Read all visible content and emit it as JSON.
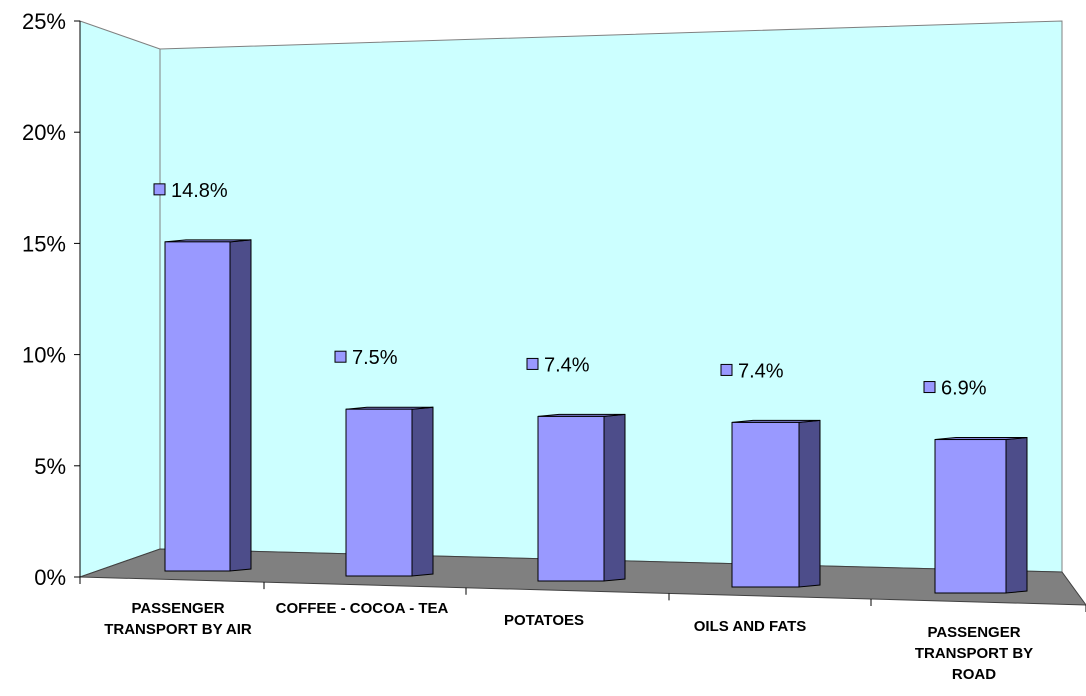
{
  "chart_data": {
    "type": "bar",
    "categories": [
      "PASSENGER TRANSPORT BY AIR",
      "COFFEE - COCOA - TEA",
      "POTATOES",
      "OILS AND FATS",
      "PASSENGER TRANSPORT BY ROAD"
    ],
    "values": [
      14.8,
      7.5,
      7.4,
      7.4,
      6.9
    ],
    "data_labels": [
      "14.8%",
      "7.5%",
      "7.4%",
      "7.4%",
      "6.9%"
    ],
    "ylim": [
      0,
      25
    ],
    "yticks": [
      0,
      5,
      10,
      15,
      20,
      25
    ],
    "ytick_labels": [
      "0%",
      "5%",
      "10%",
      "15%",
      "20%",
      "25%"
    ],
    "grid": false,
    "legend": "none",
    "style": "3d-column",
    "colors": {
      "bar_front": "#9999ff",
      "bar_side": "#4d4d8a",
      "bar_top": "#7f7fd6",
      "back_wall": "#ccffff",
      "floor": "#808080"
    }
  }
}
